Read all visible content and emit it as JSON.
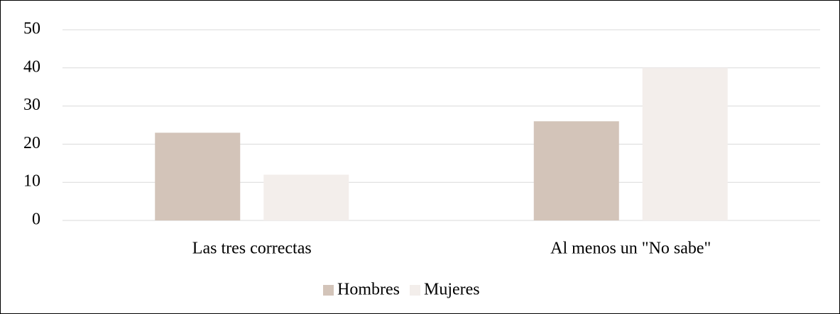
{
  "chart_data": {
    "type": "bar",
    "categories": [
      "Las tres correctas",
      "Al menos un \"No sabe\""
    ],
    "series": [
      {
        "name": "Hombres",
        "color": "#d3c4b9",
        "values": [
          23,
          26
        ]
      },
      {
        "name": "Mujeres",
        "color": "#f3eeeb",
        "values": [
          12,
          40
        ]
      }
    ],
    "ylim": [
      0,
      50
    ],
    "yticks": [
      0,
      10,
      20,
      30,
      40,
      50
    ],
    "grid": true,
    "legend": "bottom"
  }
}
